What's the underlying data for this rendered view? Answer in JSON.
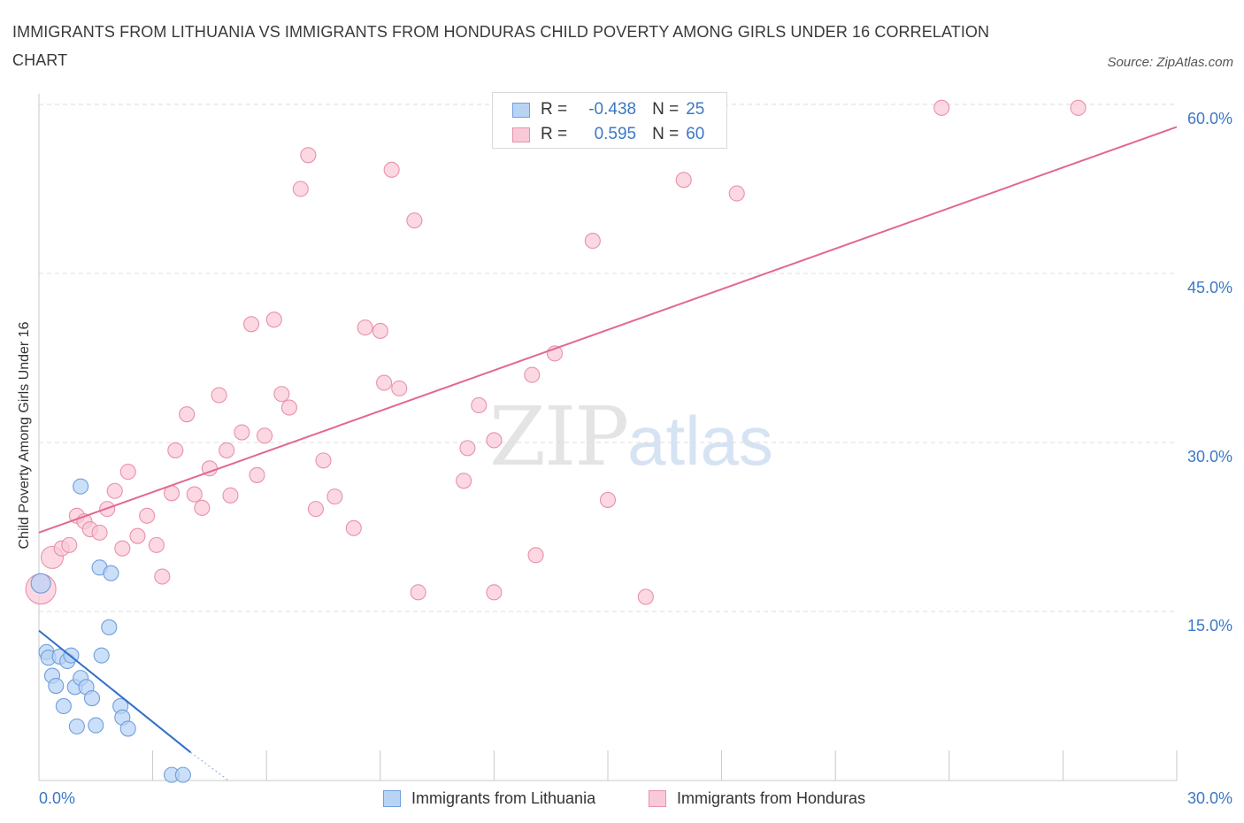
{
  "title": "IMMIGRANTS FROM LITHUANIA VS IMMIGRANTS FROM HONDURAS CHILD POVERTY AMONG GIRLS UNDER 16 CORRELATION CHART",
  "source": "Source: ZipAtlas.com",
  "watermark": {
    "zip": "ZIP",
    "atlas": "atlas"
  },
  "colors": {
    "lithuania_fill": "#b9d3f5",
    "lithuania_stroke": "#6f9fdb",
    "lithuania_line": "#2f6fc9",
    "honduras_fill": "#f9c9d7",
    "honduras_stroke": "#e891ac",
    "honduras_line": "#e2688f",
    "tick_text": "#3b78c4",
    "grid": "#dedede"
  },
  "legend": {
    "rows": [
      {
        "r_label": "R =",
        "r_value": "-0.438",
        "n_label": "N =",
        "n_value": "25"
      },
      {
        "r_label": "R =",
        "r_value": "0.595",
        "n_label": "N =",
        "n_value": "60"
      }
    ]
  },
  "bottom_legend": {
    "lithuania": "Immigrants from Lithuania",
    "honduras": "Immigrants from Honduras"
  },
  "chart_data": {
    "type": "scatter",
    "title": "IMMIGRANTS FROM LITHUANIA VS IMMIGRANTS FROM HONDURAS CHILD POVERTY AMONG GIRLS UNDER 16 CORRELATION CHART",
    "xlabel": "",
    "ylabel": "Child Poverty Among Girls Under 16",
    "xlim": [
      0,
      30
    ],
    "ylim": [
      0,
      60
    ],
    "x_tick_labels": [
      {
        "value": 0,
        "label": "0.0%"
      },
      {
        "value": 30,
        "label": "30.0%"
      }
    ],
    "y_tick_labels": [
      {
        "value": 15,
        "label": "15.0%"
      },
      {
        "value": 30,
        "label": "30.0%"
      },
      {
        "value": 45,
        "label": "45.0%"
      },
      {
        "value": 60,
        "label": "60.0%"
      }
    ],
    "series": [
      {
        "name": "Immigrants from Lithuania",
        "R": -0.438,
        "N": 25,
        "points": [
          [
            0.05,
            17.5
          ],
          [
            0.2,
            11.4
          ],
          [
            0.25,
            10.9
          ],
          [
            0.35,
            9.3
          ],
          [
            0.45,
            8.4
          ],
          [
            0.65,
            6.6
          ],
          [
            0.55,
            11.0
          ],
          [
            0.75,
            10.6
          ],
          [
            0.85,
            11.1
          ],
          [
            0.95,
            8.3
          ],
          [
            1.1,
            9.1
          ],
          [
            1.25,
            8.3
          ],
          [
            1.4,
            7.3
          ],
          [
            1.0,
            4.8
          ],
          [
            1.5,
            4.9
          ],
          [
            1.65,
            11.1
          ],
          [
            1.85,
            13.6
          ],
          [
            2.15,
            6.6
          ],
          [
            2.2,
            5.6
          ],
          [
            2.35,
            4.6
          ],
          [
            1.1,
            26.1
          ],
          [
            1.6,
            18.9
          ],
          [
            1.9,
            18.4
          ],
          [
            3.5,
            0.5
          ],
          [
            3.8,
            0.5
          ]
        ],
        "trend": {
          "x": [
            0,
            4.0
          ],
          "y": [
            13.3,
            2.5
          ],
          "dashed_extension": {
            "x": [
              4.0,
              5.0
            ],
            "y": [
              2.5,
              0
            ]
          }
        }
      },
      {
        "name": "Immigrants from Honduras",
        "R": 0.595,
        "N": 60,
        "points": [
          [
            0.05,
            17.0
          ],
          [
            0.35,
            19.8
          ],
          [
            0.6,
            20.6
          ],
          [
            0.8,
            20.9
          ],
          [
            1.0,
            23.5
          ],
          [
            1.2,
            23.0
          ],
          [
            1.35,
            22.3
          ],
          [
            1.6,
            22.0
          ],
          [
            1.8,
            24.1
          ],
          [
            2.0,
            25.7
          ],
          [
            2.2,
            20.6
          ],
          [
            2.35,
            27.4
          ],
          [
            2.6,
            21.7
          ],
          [
            2.85,
            23.5
          ],
          [
            3.1,
            20.9
          ],
          [
            3.25,
            18.1
          ],
          [
            3.5,
            25.5
          ],
          [
            3.6,
            29.3
          ],
          [
            3.9,
            32.5
          ],
          [
            4.1,
            25.4
          ],
          [
            4.3,
            24.2
          ],
          [
            4.5,
            27.7
          ],
          [
            4.75,
            34.2
          ],
          [
            4.95,
            29.3
          ],
          [
            5.05,
            25.3
          ],
          [
            5.35,
            30.9
          ],
          [
            5.6,
            40.5
          ],
          [
            5.75,
            27.1
          ],
          [
            5.95,
            30.6
          ],
          [
            6.2,
            40.9
          ],
          [
            6.4,
            34.3
          ],
          [
            6.6,
            33.1
          ],
          [
            6.9,
            52.5
          ],
          [
            7.1,
            55.5
          ],
          [
            7.3,
            24.1
          ],
          [
            7.5,
            28.4
          ],
          [
            7.8,
            25.2
          ],
          [
            8.3,
            22.4
          ],
          [
            8.6,
            40.2
          ],
          [
            9.0,
            39.9
          ],
          [
            9.1,
            35.3
          ],
          [
            9.3,
            54.2
          ],
          [
            9.5,
            34.8
          ],
          [
            9.9,
            49.7
          ],
          [
            10.0,
            16.7
          ],
          [
            11.3,
            29.5
          ],
          [
            11.2,
            26.6
          ],
          [
            11.6,
            33.3
          ],
          [
            12.0,
            30.2
          ],
          [
            12.0,
            16.7
          ],
          [
            13.0,
            36.0
          ],
          [
            13.1,
            20.0
          ],
          [
            13.6,
            37.9
          ],
          [
            14.6,
            47.9
          ],
          [
            15.0,
            24.9
          ],
          [
            16.0,
            16.3
          ],
          [
            17.0,
            53.3
          ],
          [
            18.4,
            52.1
          ],
          [
            23.8,
            59.7
          ],
          [
            27.4,
            59.7
          ]
        ],
        "trend": {
          "x": [
            0,
            30
          ],
          "y": [
            22.0,
            58.0
          ]
        }
      }
    ],
    "grid": true,
    "legend_position": "top-center"
  }
}
